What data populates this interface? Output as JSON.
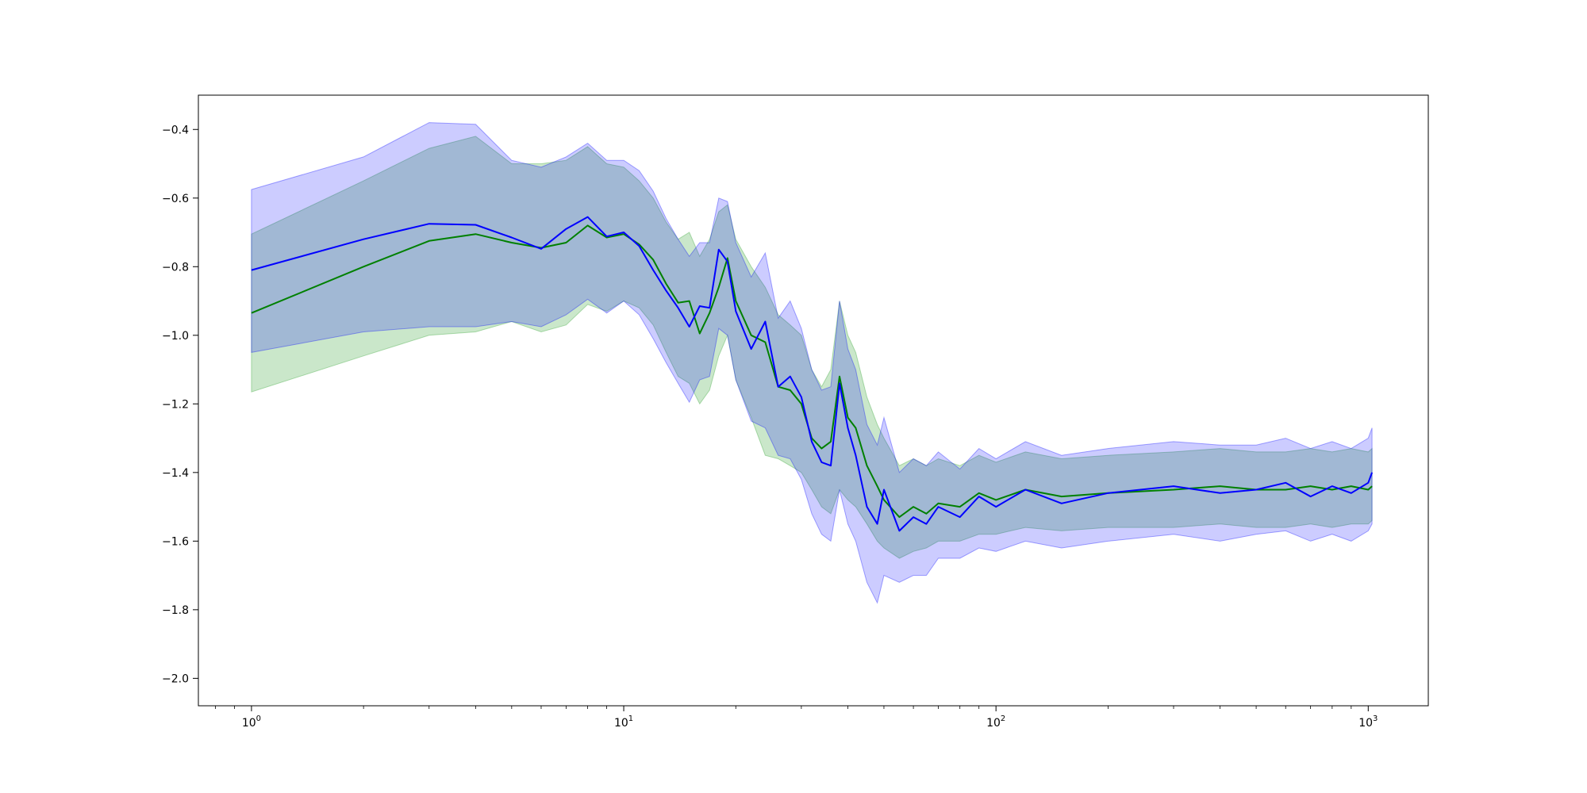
{
  "chart_data": {
    "type": "line",
    "title": "",
    "xlabel": "",
    "ylabel": "",
    "x_scale": "log",
    "xlim": [
      0.72,
      1450
    ],
    "ylim": [
      -2.08,
      -0.3
    ],
    "grid": false,
    "legend": null,
    "x_ticks": [
      {
        "base": "10",
        "exp": "0",
        "value": 1
      },
      {
        "base": "10",
        "exp": "1",
        "value": 10
      },
      {
        "base": "10",
        "exp": "2",
        "value": 100
      },
      {
        "base": "10",
        "exp": "3",
        "value": 1000
      }
    ],
    "y_ticks": [
      {
        "label": "−0.4",
        "value": -0.4
      },
      {
        "label": "−0.6",
        "value": -0.6
      },
      {
        "label": "−0.8",
        "value": -0.8
      },
      {
        "label": "−1.0",
        "value": -1.0
      },
      {
        "label": "−1.2",
        "value": -1.2
      },
      {
        "label": "−1.4",
        "value": -1.4
      },
      {
        "label": "−1.6",
        "value": -1.6
      },
      {
        "label": "−1.8",
        "value": -1.8
      },
      {
        "label": "−2.0",
        "value": -2.0
      }
    ],
    "series": [
      {
        "color": "#008000",
        "band_color": "#2ca02c",
        "band_opacity": 0.25,
        "x": [
          1,
          2,
          3,
          4,
          5,
          6,
          7,
          8,
          9,
          10,
          11,
          12,
          13,
          14,
          15,
          16,
          17,
          18,
          19,
          20,
          22,
          24,
          26,
          28,
          30,
          32,
          34,
          36,
          38,
          40,
          42,
          45,
          48,
          50,
          55,
          60,
          65,
          70,
          80,
          90,
          100,
          120,
          150,
          200,
          300,
          400,
          500,
          600,
          700,
          800,
          900,
          1000,
          1024
        ],
        "y": [
          -0.935,
          -0.8,
          -0.725,
          -0.705,
          -0.73,
          -0.745,
          -0.73,
          -0.68,
          -0.715,
          -0.705,
          -0.735,
          -0.78,
          -0.85,
          -0.905,
          -0.9,
          -0.995,
          -0.935,
          -0.86,
          -0.775,
          -0.9,
          -1.0,
          -1.02,
          -1.15,
          -1.16,
          -1.2,
          -1.3,
          -1.33,
          -1.31,
          -1.12,
          -1.24,
          -1.27,
          -1.38,
          -1.44,
          -1.48,
          -1.53,
          -1.5,
          -1.52,
          -1.49,
          -1.5,
          -1.46,
          -1.48,
          -1.45,
          -1.47,
          -1.46,
          -1.45,
          -1.44,
          -1.45,
          -1.45,
          -1.44,
          -1.45,
          -1.44,
          -1.45,
          -1.44
        ],
        "y_lower": [
          -1.165,
          -1.06,
          -1.0,
          -0.99,
          -0.96,
          -0.99,
          -0.97,
          -0.91,
          -0.93,
          -0.9,
          -0.92,
          -0.97,
          -1.05,
          -1.12,
          -1.14,
          -1.2,
          -1.16,
          -1.06,
          -1.0,
          -1.13,
          -1.24,
          -1.35,
          -1.36,
          -1.38,
          -1.4,
          -1.45,
          -1.5,
          -1.52,
          -1.45,
          -1.48,
          -1.5,
          -1.55,
          -1.6,
          -1.62,
          -1.65,
          -1.63,
          -1.62,
          -1.6,
          -1.6,
          -1.58,
          -1.58,
          -1.56,
          -1.57,
          -1.56,
          -1.56,
          -1.55,
          -1.56,
          -1.56,
          -1.55,
          -1.56,
          -1.55,
          -1.55,
          -1.54
        ],
        "y_upper": [
          -0.705,
          -0.55,
          -0.455,
          -0.42,
          -0.5,
          -0.5,
          -0.49,
          -0.45,
          -0.5,
          -0.51,
          -0.55,
          -0.6,
          -0.67,
          -0.72,
          -0.7,
          -0.77,
          -0.72,
          -0.64,
          -0.62,
          -0.72,
          -0.8,
          -0.86,
          -0.94,
          -0.97,
          -1.0,
          -1.1,
          -1.15,
          -1.1,
          -0.9,
          -1.0,
          -1.05,
          -1.18,
          -1.26,
          -1.3,
          -1.38,
          -1.36,
          -1.38,
          -1.36,
          -1.38,
          -1.35,
          -1.37,
          -1.34,
          -1.36,
          -1.35,
          -1.34,
          -1.33,
          -1.34,
          -1.34,
          -1.33,
          -1.34,
          -1.33,
          -1.34,
          -1.33
        ]
      },
      {
        "color": "#0000ff",
        "band_color": "#0000ff",
        "band_opacity": 0.2,
        "x": [
          1,
          2,
          3,
          4,
          5,
          6,
          7,
          8,
          9,
          10,
          11,
          12,
          13,
          14,
          15,
          16,
          17,
          18,
          19,
          20,
          22,
          24,
          26,
          28,
          30,
          32,
          34,
          36,
          38,
          40,
          42,
          45,
          48,
          50,
          55,
          60,
          65,
          70,
          80,
          90,
          100,
          120,
          150,
          200,
          300,
          400,
          500,
          600,
          700,
          800,
          900,
          1000,
          1024
        ],
        "y": [
          -0.81,
          -0.72,
          -0.675,
          -0.678,
          -0.715,
          -0.748,
          -0.69,
          -0.655,
          -0.712,
          -0.7,
          -0.74,
          -0.81,
          -0.87,
          -0.92,
          -0.975,
          -0.915,
          -0.92,
          -0.75,
          -0.785,
          -0.93,
          -1.04,
          -0.96,
          -1.15,
          -1.12,
          -1.18,
          -1.31,
          -1.37,
          -1.38,
          -1.14,
          -1.27,
          -1.35,
          -1.5,
          -1.55,
          -1.45,
          -1.57,
          -1.53,
          -1.55,
          -1.5,
          -1.53,
          -1.47,
          -1.5,
          -1.45,
          -1.49,
          -1.46,
          -1.44,
          -1.46,
          -1.45,
          -1.43,
          -1.47,
          -1.44,
          -1.46,
          -1.43,
          -1.4
        ],
        "y_lower": [
          -1.05,
          -0.99,
          -0.975,
          -0.975,
          -0.96,
          -0.975,
          -0.94,
          -0.895,
          -0.935,
          -0.9,
          -0.94,
          -1.01,
          -1.08,
          -1.14,
          -1.195,
          -1.13,
          -1.12,
          -0.98,
          -1.0,
          -1.13,
          -1.25,
          -1.27,
          -1.35,
          -1.36,
          -1.42,
          -1.52,
          -1.58,
          -1.6,
          -1.45,
          -1.55,
          -1.6,
          -1.72,
          -1.78,
          -1.7,
          -1.72,
          -1.7,
          -1.7,
          -1.65,
          -1.65,
          -1.62,
          -1.63,
          -1.6,
          -1.62,
          -1.6,
          -1.58,
          -1.6,
          -1.58,
          -1.57,
          -1.6,
          -1.58,
          -1.6,
          -1.57,
          -1.55
        ],
        "y_upper": [
          -0.575,
          -0.48,
          -0.38,
          -0.385,
          -0.49,
          -0.51,
          -0.48,
          -0.44,
          -0.49,
          -0.49,
          -0.52,
          -0.58,
          -0.66,
          -0.72,
          -0.77,
          -0.73,
          -0.73,
          -0.6,
          -0.61,
          -0.73,
          -0.83,
          -0.76,
          -0.95,
          -0.9,
          -0.98,
          -1.1,
          -1.16,
          -1.15,
          -0.9,
          -1.04,
          -1.1,
          -1.26,
          -1.32,
          -1.24,
          -1.4,
          -1.36,
          -1.38,
          -1.34,
          -1.39,
          -1.33,
          -1.36,
          -1.31,
          -1.35,
          -1.33,
          -1.31,
          -1.32,
          -1.32,
          -1.3,
          -1.33,
          -1.31,
          -1.33,
          -1.3,
          -1.27
        ]
      }
    ]
  }
}
